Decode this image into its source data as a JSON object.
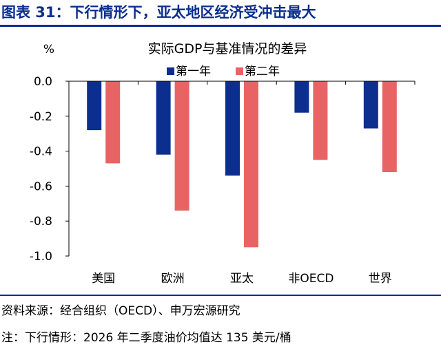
{
  "figure_title": "图表 31：下行情形下，亚太地区经济受冲击最大",
  "source_note": "资料来源：经合组织（OECD）、申万宏源研究",
  "footnote": "注：下行情形：2026 年二季度油价均值达 135 美元/桶",
  "colors": {
    "title": "#0b2d8f",
    "series_1": "#0c2e8e",
    "series_2": "#e86464"
  },
  "chart_data": {
    "type": "bar",
    "title": "实际GDP与基准情况的差异",
    "ylabel": "%",
    "xlabel": "",
    "ylim": [
      -1.0,
      0.0
    ],
    "yticks": [
      "0.0",
      "-0.2",
      "-0.4",
      "-0.6",
      "-0.8",
      "-1.0"
    ],
    "ytick_values": [
      0.0,
      -0.2,
      -0.4,
      -0.6,
      -0.8,
      -1.0
    ],
    "grid": false,
    "legend_position": "top-center",
    "categories": [
      "美国",
      "欧洲",
      "亚太",
      "非OECD",
      "世界"
    ],
    "series": [
      {
        "name": "第一年",
        "values": [
          -0.28,
          -0.42,
          -0.54,
          -0.18,
          -0.27
        ]
      },
      {
        "name": "第二年",
        "values": [
          -0.47,
          -0.74,
          -0.95,
          -0.45,
          -0.52
        ]
      }
    ]
  }
}
